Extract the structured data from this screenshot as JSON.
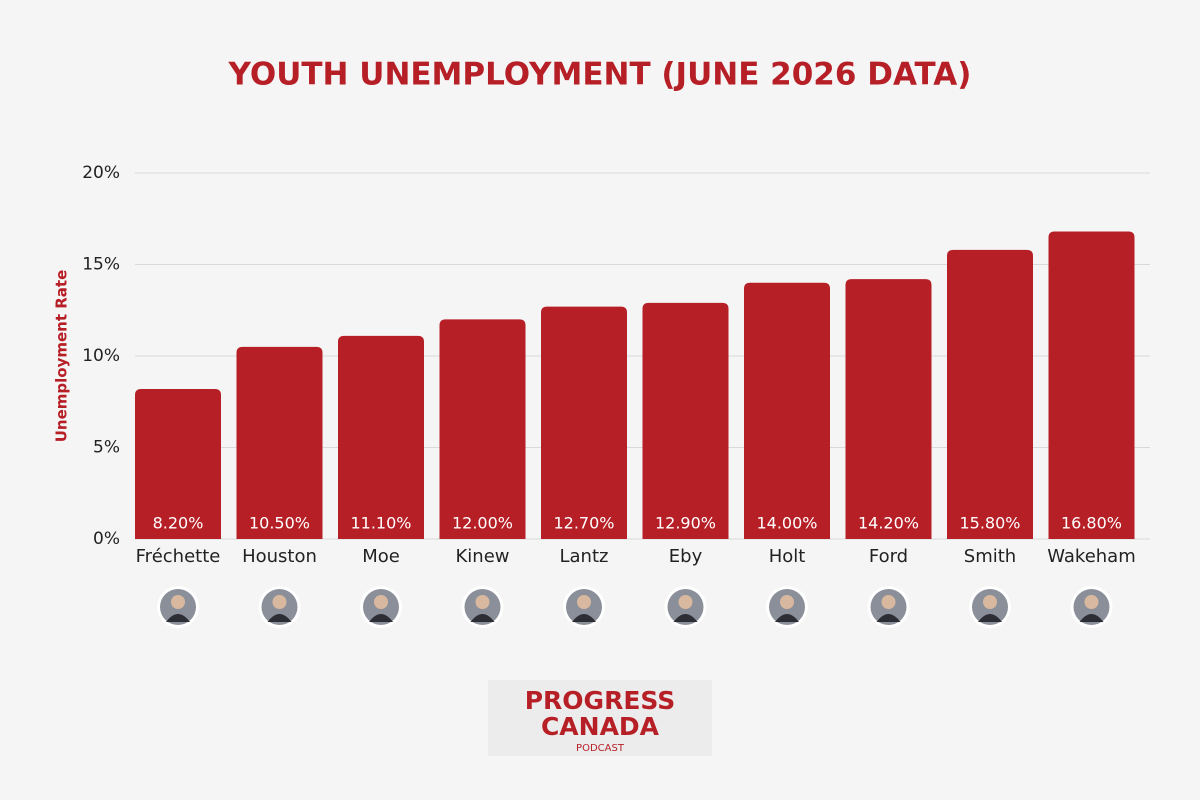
{
  "chart_data": {
    "type": "bar",
    "title": "YOUTH UNEMPLOYMENT (JUNE 2026 DATA)",
    "y_label": "Unemployment Rate",
    "categories": [
      "Fréchette",
      "Houston",
      "Moe",
      "Kinew",
      "Lantz",
      "Eby",
      "Holt",
      "Ford",
      "Smith",
      "Wakeham"
    ],
    "values": [
      8.2,
      10.5,
      11.1,
      12.0,
      12.7,
      12.9,
      14.0,
      14.2,
      15.8,
      16.8
    ],
    "value_labels": [
      "8.20%",
      "10.50%",
      "11.10%",
      "12.00%",
      "12.70%",
      "12.90%",
      "14.00%",
      "14.20%",
      "15.80%",
      "16.80%"
    ],
    "color": "#b71f27",
    "ylim": [
      0,
      20
    ],
    "yticks": [
      {
        "value": 0,
        "label": "0%"
      },
      {
        "value": 5,
        "label": "5%"
      },
      {
        "value": 10,
        "label": "10%"
      },
      {
        "value": 15,
        "label": "15%"
      },
      {
        "value": 20,
        "label": "20%"
      }
    ],
    "grid": true
  },
  "logo": {
    "line1": "PROGRESS",
    "line2": "CANADA",
    "line3": "PODCAST"
  }
}
